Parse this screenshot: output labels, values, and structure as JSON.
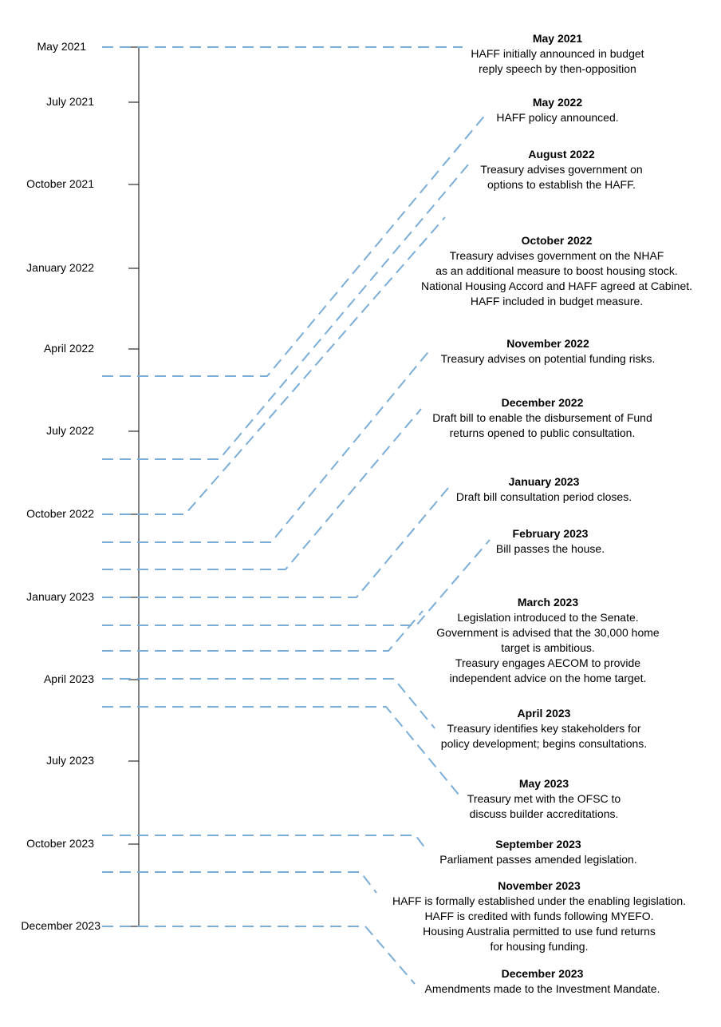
{
  "axis": {
    "line_color": "#000000",
    "labels": [
      "May 2021",
      "July 2021",
      "October 2021",
      "January 2022",
      "April 2022",
      "July 2022",
      "October 2022",
      "January 2023",
      "April 2023",
      "July 2023",
      "October 2023",
      "December 2023"
    ]
  },
  "connector_color": "#7aaed8",
  "events": [
    {
      "date": "May 2021",
      "lines": [
        "HAFF initially announced in budget",
        "reply speech by then-opposition"
      ]
    },
    {
      "date": "May 2022",
      "lines": [
        "HAFF policy announced."
      ]
    },
    {
      "date": "August 2022",
      "lines": [
        "Treasury advises government on",
        "options to establish the HAFF."
      ]
    },
    {
      "date": "October 2022",
      "lines": [
        "Treasury advises government on the NHAF",
        "as an additional measure to boost housing stock.",
        "National Housing Accord and HAFF agreed at Cabinet.",
        "HAFF included in budget measure."
      ]
    },
    {
      "date": "November 2022",
      "lines": [
        "Treasury advises on potential funding risks."
      ]
    },
    {
      "date": "December 2022",
      "lines": [
        "Draft bill to enable the disbursement of Fund",
        "returns opened to public consultation."
      ]
    },
    {
      "date": "January 2023",
      "lines": [
        "Draft bill consultation period closes."
      ]
    },
    {
      "date": "February 2023",
      "lines": [
        "Bill passes the house."
      ]
    },
    {
      "date": "March 2023",
      "lines": [
        "Legislation introduced to the Senate.",
        "Government is advised that the 30,000 home",
        "target is ambitious.",
        "Treasury engages AECOM to provide",
        "independent advice on the home target."
      ]
    },
    {
      "date": "April 2023",
      "lines": [
        "Treasury identifies key stakeholders for",
        "policy development; begins consultations."
      ]
    },
    {
      "date": "May 2023",
      "lines": [
        "Treasury met with the OFSC to",
        "discuss builder accreditations."
      ]
    },
    {
      "date": "September 2023",
      "lines": [
        "Parliament passes amended legislation."
      ]
    },
    {
      "date": "November 2023",
      "lines": [
        "HAFF is formally established under the enabling legislation.",
        "HAFF is credited with funds following MYEFO.",
        "Housing Australia permitted to use fund returns",
        "for housing funding."
      ]
    },
    {
      "date": "December 2023",
      "lines": [
        "Amendments made to the Investment Mandate."
      ]
    }
  ]
}
